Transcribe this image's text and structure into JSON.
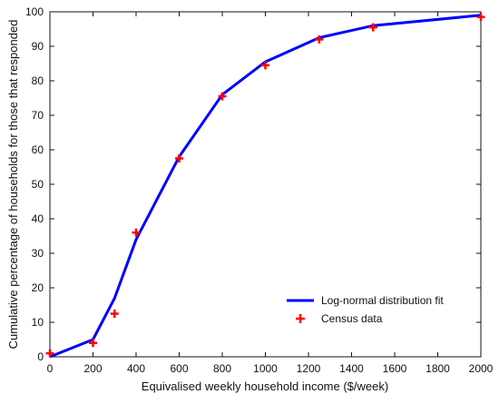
{
  "chart_data": {
    "type": "line",
    "xlabel": "Equivalised weekly household income ($/week)",
    "ylabel": "Cumulative percentage of households for those that responded",
    "xlim": [
      0,
      2000
    ],
    "ylim": [
      0,
      100
    ],
    "xticks": [
      "0",
      "200",
      "400",
      "600",
      "800",
      "1000",
      "1200",
      "1400",
      "1600",
      "1800",
      "2000"
    ],
    "yticks": [
      "0",
      "10",
      "20",
      "30",
      "40",
      "50",
      "60",
      "70",
      "80",
      "90",
      "100"
    ],
    "grid": false,
    "legend_position": "bottom-right",
    "series": [
      {
        "name": "Log-normal distribution fit",
        "style": "line",
        "color": "#0000ff",
        "x": [
          0,
          200,
          300,
          400,
          600,
          800,
          1000,
          1250,
          1500,
          2000
        ],
        "y": [
          0,
          5,
          17,
          34,
          58,
          76,
          85.5,
          92.5,
          96,
          99
        ]
      },
      {
        "name": "Census data",
        "style": "marker-plus",
        "color": "#ff0000",
        "x": [
          0,
          200,
          300,
          400,
          600,
          800,
          1000,
          1250,
          1500,
          2000
        ],
        "y": [
          1,
          4,
          12.5,
          36,
          57.5,
          75.5,
          84.5,
          92,
          95.5,
          98.5
        ]
      }
    ]
  }
}
